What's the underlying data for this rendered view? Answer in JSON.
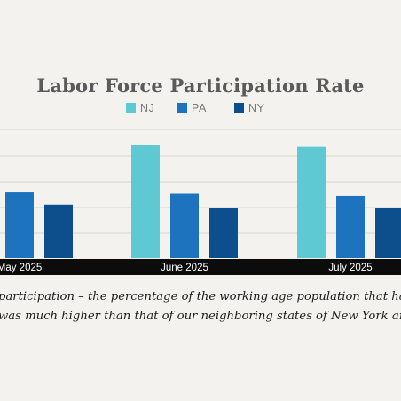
{
  "chart_data": {
    "type": "bar",
    "title": "Labor Force Participation Rate",
    "categories": [
      "May 2025",
      "June 2025",
      "July 2025"
    ],
    "series": [
      {
        "name": "NJ",
        "values": [
          null,
          66.8,
          66.6
        ]
      },
      {
        "name": "PA",
        "values": [
          62.5,
          62.3,
          62.1
        ]
      },
      {
        "name": "NY",
        "values": [
          61.3,
          61.0,
          61.0
        ]
      }
    ],
    "colors": {
      "NJ": "#5ec8d3",
      "PA": "#1e73be",
      "NY": "#0d4f8c"
    },
    "ylim": [
      56.4,
      68.2
    ],
    "grid": true,
    "legend": "top-center"
  },
  "caption": {
    "line1": "participation – the percentage of the working age population that has a job or i",
    "line2": "was much higher than that of our neighboring states of New York and Pennsylv"
  }
}
